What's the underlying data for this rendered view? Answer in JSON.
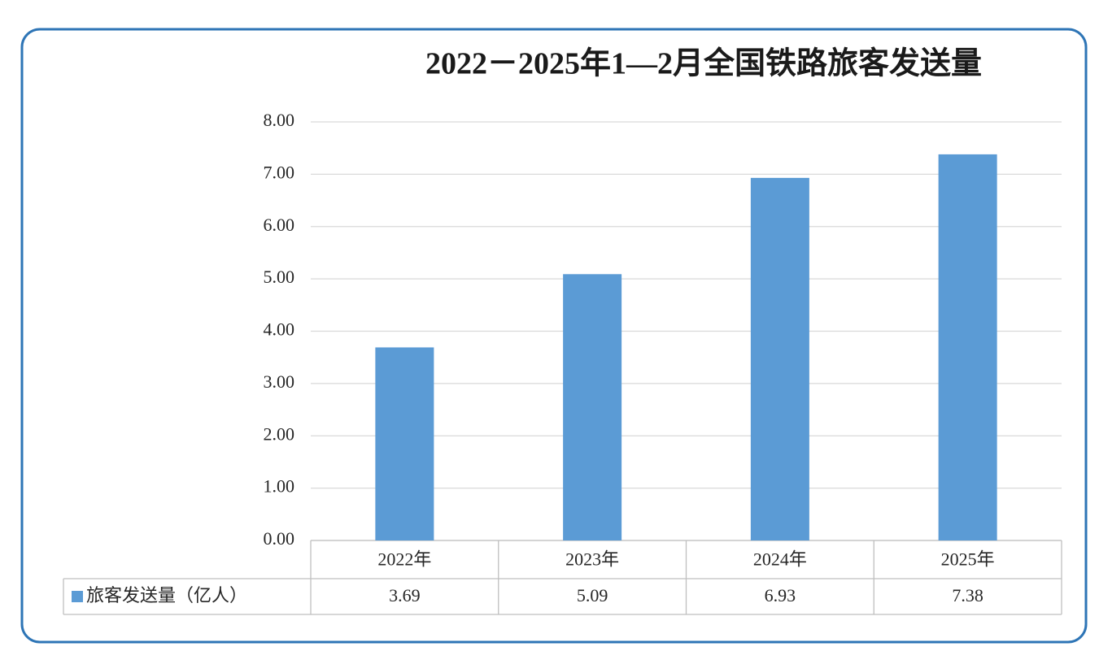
{
  "chart_data": {
    "type": "bar",
    "title": "2022－2025年1—2月全国铁路旅客发送量",
    "categories": [
      "2022年",
      "2023年",
      "2024年",
      "2025年"
    ],
    "series": [
      {
        "name": "旅客发送量（亿人）",
        "color": "#5b9bd5",
        "values": [
          3.69,
          5.09,
          6.93,
          7.38
        ]
      }
    ],
    "ylim": [
      0,
      8
    ],
    "yticks": [
      {
        "value": 0,
        "label": "0.00"
      },
      {
        "value": 1,
        "label": "1.00"
      },
      {
        "value": 2,
        "label": "2.00"
      },
      {
        "value": 3,
        "label": "3.00"
      },
      {
        "value": 4,
        "label": "4.00"
      },
      {
        "value": 5,
        "label": "5.00"
      },
      {
        "value": 6,
        "label": "6.00"
      },
      {
        "value": 7,
        "label": "7.00"
      },
      {
        "value": 8,
        "label": "8.00"
      }
    ],
    "grid": true,
    "data_table": true
  }
}
